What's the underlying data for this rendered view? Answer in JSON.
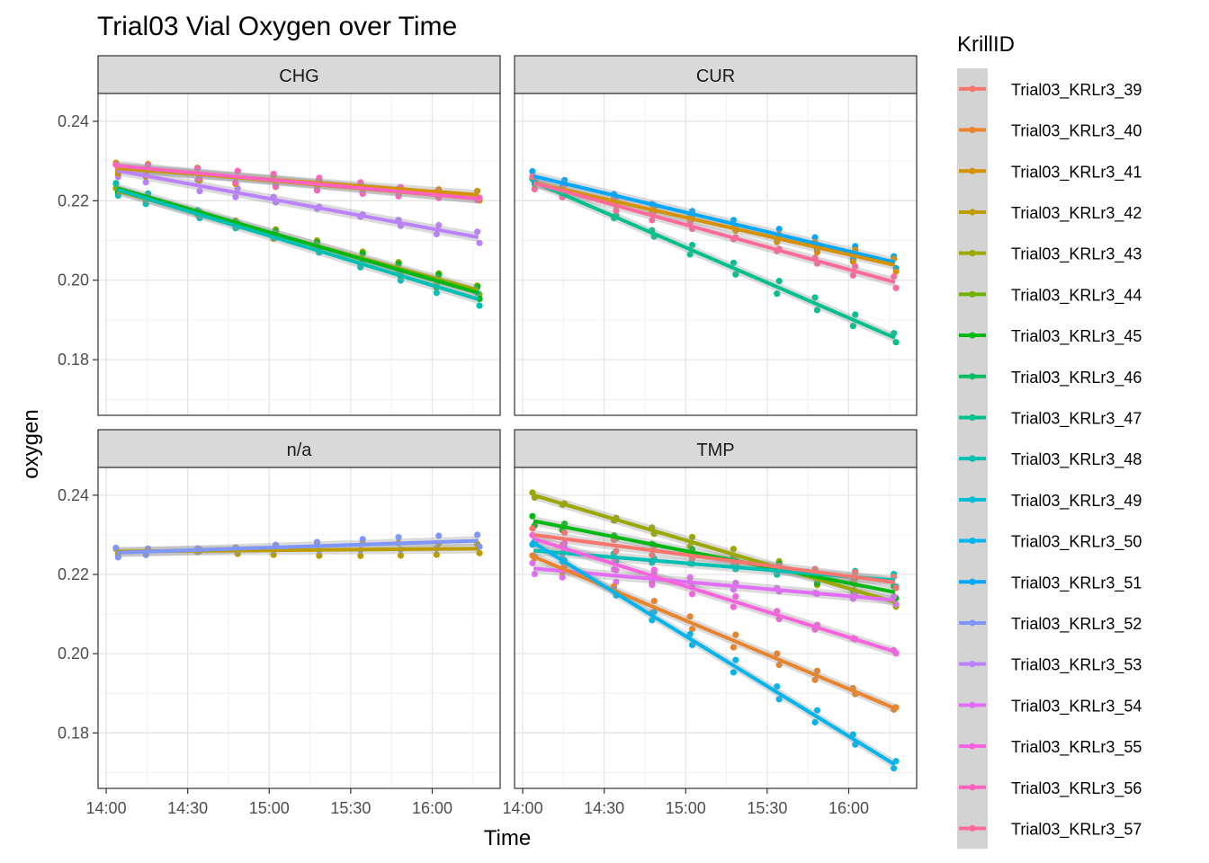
{
  "chart_data": {
    "type": "scatter",
    "title": "Trial03 Vial Oxygen over Time",
    "xlabel": "Time",
    "ylabel": "oxygen",
    "xlim": [
      "13:57",
      "16:25"
    ],
    "ylim": [
      0.166,
      0.247
    ],
    "x_ticks": [
      "14:00",
      "14:30",
      "15:00",
      "15:30",
      "16:00"
    ],
    "y_ticks": [
      "0.18",
      "0.20",
      "0.22",
      "0.24"
    ],
    "grid": true,
    "legend": {
      "title": "KrillID",
      "placement": "right"
    },
    "series": [
      {
        "name": "Trial03_KRLr3_39",
        "color": "#F8766D"
      },
      {
        "name": "Trial03_KRLr3_40",
        "color": "#E9842C"
      },
      {
        "name": "Trial03_KRLr3_41",
        "color": "#D69100"
      },
      {
        "name": "Trial03_KRLr3_42",
        "color": "#BC9D00"
      },
      {
        "name": "Trial03_KRLr3_43",
        "color": "#9CA700"
      },
      {
        "name": "Trial03_KRLr3_44",
        "color": "#6FB000"
      },
      {
        "name": "Trial03_KRLr3_45",
        "color": "#00B813"
      },
      {
        "name": "Trial03_KRLr3_46",
        "color": "#00BD61"
      },
      {
        "name": "Trial03_KRLr3_47",
        "color": "#00C08E"
      },
      {
        "name": "Trial03_KRLr3_48",
        "color": "#00C0B4"
      },
      {
        "name": "Trial03_KRLr3_49",
        "color": "#00BDD4"
      },
      {
        "name": "Trial03_KRLr3_50",
        "color": "#00B5EE"
      },
      {
        "name": "Trial03_KRLr3_51",
        "color": "#00A7FF"
      },
      {
        "name": "Trial03_KRLr3_52",
        "color": "#7F96FF"
      },
      {
        "name": "Trial03_KRLr3_53",
        "color": "#BC81FF"
      },
      {
        "name": "Trial03_KRLr3_54",
        "color": "#E26EF7"
      },
      {
        "name": "Trial03_KRLr3_55",
        "color": "#F863DF"
      },
      {
        "name": "Trial03_KRLr3_56",
        "color": "#FF62BF"
      },
      {
        "name": "Trial03_KRLr3_57",
        "color": "#FF6A9A"
      }
    ],
    "facets": [
      {
        "label": "CHG",
        "points_x": [
          "14:04",
          "14:15",
          "14:34",
          "14:48",
          "15:02",
          "15:18",
          "15:34",
          "15:48",
          "16:02",
          "16:17"
        ],
        "trends": [
          {
            "series": "Trial03_KRLr3_43",
            "start": [
              "14:04",
              0.2225
            ],
            "end": [
              "16:17",
              0.1975
            ]
          },
          {
            "series": "Trial03_KRLr3_45",
            "start": [
              "14:04",
              0.2232
            ],
            "end": [
              "16:17",
              0.1968
            ]
          },
          {
            "series": "Trial03_KRLr3_48",
            "start": [
              "14:04",
              0.2228
            ],
            "end": [
              "16:17",
              0.1952
            ]
          },
          {
            "series": "Trial03_KRLr3_53",
            "start": [
              "14:04",
              0.2276
            ],
            "end": [
              "16:17",
              0.2108
            ]
          },
          {
            "series": "Trial03_KRLr3_41",
            "start": [
              "14:04",
              0.2282
            ],
            "end": [
              "16:17",
              0.2215
            ]
          },
          {
            "series": "Trial03_KRLr3_42",
            "start": [
              "14:04",
              0.2285
            ],
            "end": [
              "16:17",
              0.2205
            ]
          },
          {
            "series": "Trial03_KRLr3_56",
            "start": [
              "14:04",
              0.2288
            ],
            "end": [
              "16:17",
              0.2205
            ]
          }
        ]
      },
      {
        "label": "CUR",
        "points_x": [
          "14:04",
          "14:15",
          "14:34",
          "14:48",
          "15:02",
          "15:18",
          "15:34",
          "15:48",
          "16:02",
          "16:17"
        ],
        "trends": [
          {
            "series": "Trial03_KRLr3_47",
            "start": [
              "14:04",
              0.2248
            ],
            "end": [
              "16:17",
              0.1855
            ]
          },
          {
            "series": "Trial03_KRLr3_51",
            "start": [
              "14:04",
              0.2262
            ],
            "end": [
              "16:17",
              0.2045
            ]
          },
          {
            "series": "Trial03_KRLr3_41",
            "start": [
              "14:04",
              0.2245
            ],
            "end": [
              "16:17",
              0.2038
            ]
          },
          {
            "series": "Trial03_KRLr3_57",
            "start": [
              "14:04",
              0.2245
            ],
            "end": [
              "16:17",
              0.1995
            ]
          }
        ]
      },
      {
        "label": "n/a",
        "points_x": [
          "14:04",
          "14:15",
          "14:34",
          "14:48",
          "15:02",
          "15:18",
          "15:34",
          "15:48",
          "16:02",
          "16:17"
        ],
        "trends": [
          {
            "series": "Trial03_KRLr3_42",
            "start": [
              "14:04",
              0.2258
            ],
            "end": [
              "16:17",
              0.2265
            ]
          },
          {
            "series": "Trial03_KRLr3_52",
            "start": [
              "14:04",
              0.2255
            ],
            "end": [
              "16:17",
              0.2285
            ]
          }
        ]
      },
      {
        "label": "TMP",
        "points_x": [
          "14:04",
          "14:15",
          "14:34",
          "14:48",
          "15:02",
          "15:18",
          "15:34",
          "15:48",
          "16:02",
          "16:17"
        ],
        "trends": [
          {
            "series": "Trial03_KRLr3_43",
            "start": [
              "14:04",
              0.24
            ],
            "end": [
              "16:17",
              0.213
            ]
          },
          {
            "series": "Trial03_KRLr3_45",
            "start": [
              "14:04",
              0.2335
            ],
            "end": [
              "16:17",
              0.2155
            ]
          },
          {
            "series": "Trial03_KRLr3_48",
            "start": [
              "14:04",
              0.226
            ],
            "end": [
              "16:17",
              0.2185
            ]
          },
          {
            "series": "Trial03_KRLr3_39",
            "start": [
              "14:04",
              0.23
            ],
            "end": [
              "16:17",
              0.218
            ]
          },
          {
            "series": "Trial03_KRLr3_54",
            "start": [
              "14:04",
              0.2215
            ],
            "end": [
              "16:17",
              0.2135
            ]
          },
          {
            "series": "Trial03_KRLr3_55",
            "start": [
              "14:04",
              0.229
            ],
            "end": [
              "16:17",
              0.2005
            ]
          },
          {
            "series": "Trial03_KRLr3_40",
            "start": [
              "14:04",
              0.2245
            ],
            "end": [
              "16:17",
              0.1862
            ]
          },
          {
            "series": "Trial03_KRLr3_50",
            "start": [
              "14:04",
              0.228
            ],
            "end": [
              "16:17",
              0.172
            ]
          }
        ]
      }
    ]
  }
}
